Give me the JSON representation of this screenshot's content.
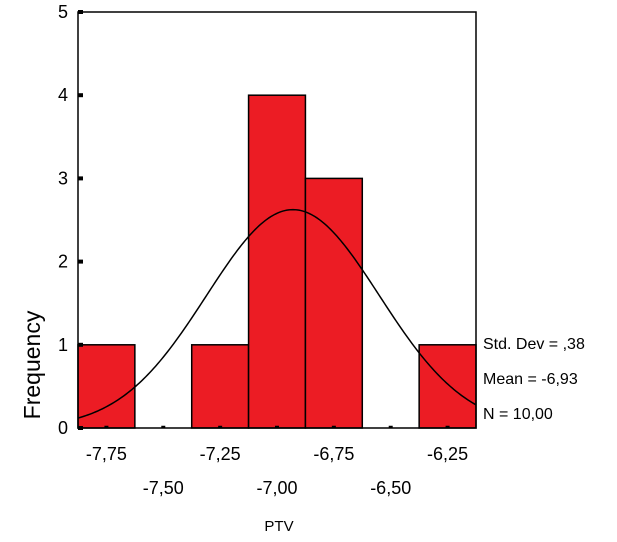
{
  "chart_data": {
    "type": "bar",
    "subtype": "histogram-with-normal-curve",
    "title": "",
    "xlabel": "PTV",
    "ylabel": "Frequency",
    "bins": [
      {
        "x0": -7.875,
        "x1": -7.625,
        "count": 1
      },
      {
        "x0": -7.625,
        "x1": -7.375,
        "count": 0
      },
      {
        "x0": -7.375,
        "x1": -7.125,
        "count": 1
      },
      {
        "x0": -7.125,
        "x1": -6.875,
        "count": 4
      },
      {
        "x0": -6.875,
        "x1": -6.625,
        "count": 3
      },
      {
        "x0": -6.625,
        "x1": -6.375,
        "count": 0
      },
      {
        "x0": -6.375,
        "x1": -6.125,
        "count": 1
      }
    ],
    "xlim": [
      -7.875,
      -6.125
    ],
    "ylim": [
      0,
      5
    ],
    "x_ticks": [
      -7.75,
      -7.5,
      -7.25,
      -7.0,
      -6.75,
      -6.5,
      -6.25
    ],
    "x_tick_labels_upper": [
      "-7,75",
      "-7,25",
      "-6,75",
      "-6,25"
    ],
    "x_tick_labels_lower": [
      "-7,50",
      "-7,00",
      "-6,50"
    ],
    "y_ticks": [
      0,
      1,
      2,
      3,
      4,
      5
    ],
    "y_tick_labels": [
      "0",
      "1",
      "2",
      "3",
      "4",
      "5"
    ],
    "normal_curve": {
      "mean": -6.93,
      "std": 0.38,
      "n": 10,
      "bin_width": 0.25
    },
    "stats": {
      "std_dev": "Std. Dev = ,38",
      "mean": "Mean = -6,93",
      "n": "N = 10,00"
    },
    "colors": {
      "bar_fill": "#ec1c24",
      "bar_stroke": "#000000",
      "axis": "#000000",
      "curve": "#000000"
    },
    "grid": false,
    "legend": "none"
  }
}
